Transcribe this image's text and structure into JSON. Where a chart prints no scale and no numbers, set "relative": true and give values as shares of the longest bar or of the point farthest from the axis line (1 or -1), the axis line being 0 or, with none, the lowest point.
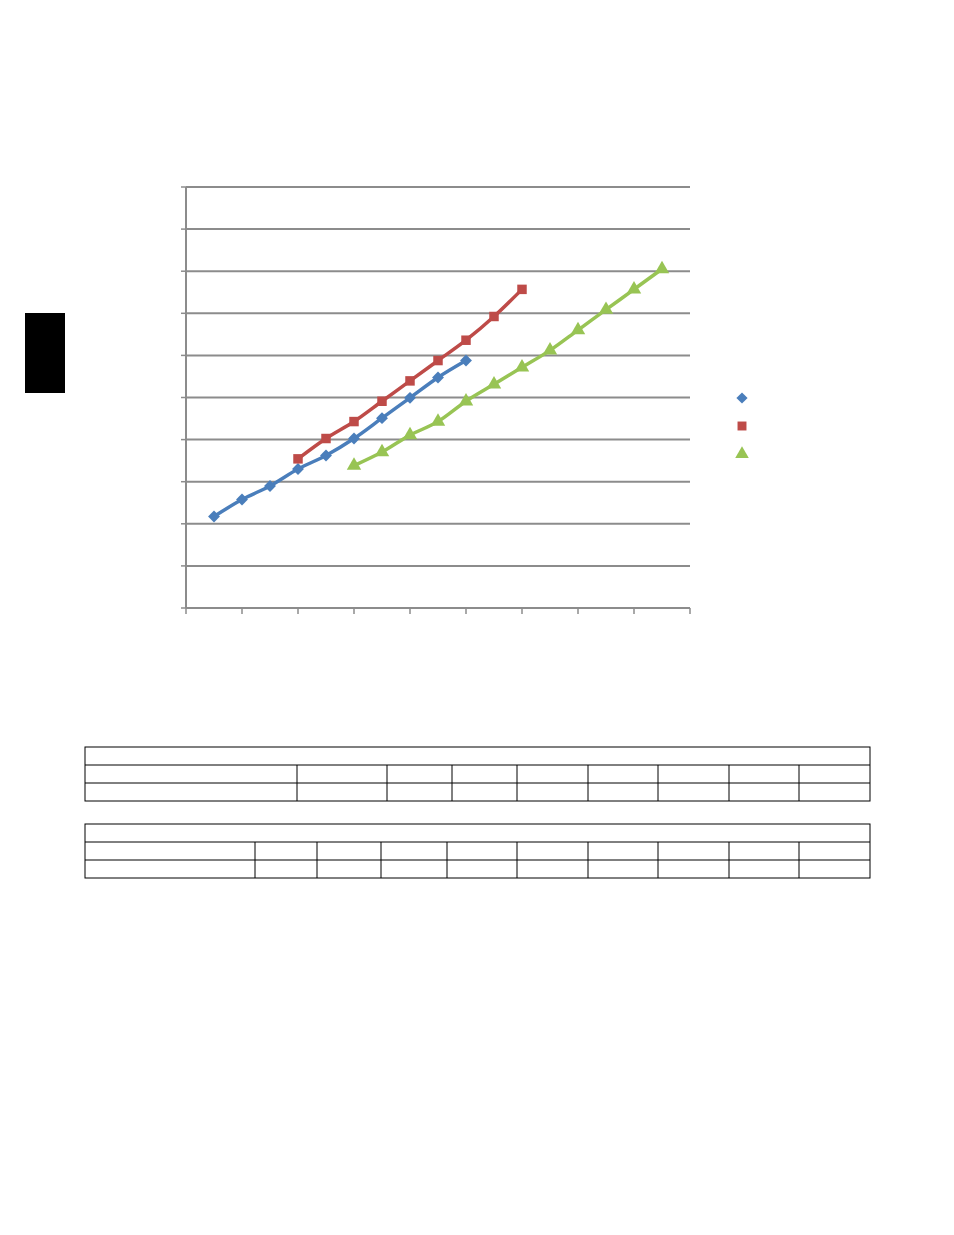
{
  "chart_data": {
    "type": "line",
    "relative": true,
    "grid": "y",
    "categories": [
      null,
      null,
      null,
      null,
      null,
      null,
      null,
      null,
      null,
      null,
      null,
      null,
      null,
      null,
      null,
      null,
      null
    ],
    "series": [
      {
        "color": "#4a7ebb",
        "marker": "diamond",
        "values": [
          0.27,
          0.32,
          0.36,
          0.41,
          0.45,
          0.5,
          0.56,
          0.62,
          0.68,
          0.73,
          null,
          null,
          null,
          null,
          null,
          null,
          null
        ]
      },
      {
        "color": "#be4b48",
        "marker": "square",
        "values": [
          null,
          null,
          null,
          0.44,
          0.5,
          0.55,
          0.61,
          0.67,
          0.73,
          0.79,
          0.86,
          0.94,
          null,
          null,
          null,
          null,
          null
        ]
      },
      {
        "color": "#98c454",
        "marker": "triangle",
        "values": [
          null,
          null,
          null,
          null,
          null,
          0.42,
          0.46,
          0.51,
          0.55,
          0.61,
          0.66,
          0.71,
          0.76,
          0.82,
          0.88,
          0.94,
          1.0
        ]
      }
    ]
  }
}
